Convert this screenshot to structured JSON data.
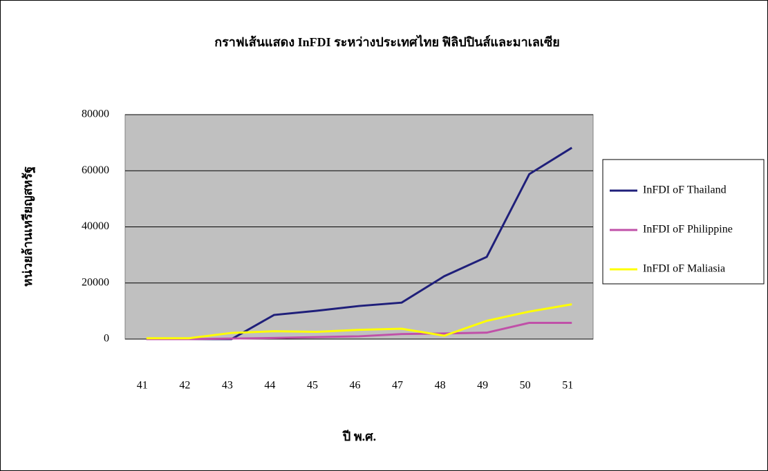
{
  "chart_data": {
    "type": "line",
    "title": "กราฟเส้นแสดง InFDI ระหว่างประเทศไทย ฟิลิปปินส์และมาเลเซีย",
    "x_label": "ปี พ.ศ.",
    "y_label": "หน่วยล้านเหรียญสหรัฐ",
    "categories": [
      "41",
      "42",
      "43",
      "44",
      "45",
      "46",
      "47",
      "48",
      "49",
      "50",
      "51"
    ],
    "series": [
      {
        "name": "InFDI oF Thailand",
        "color": "#1f1f7a",
        "values": [
          0,
          0,
          0,
          8600,
          10100,
          11800,
          13000,
          22400,
          29300,
          58800,
          68200
        ]
      },
      {
        "name": "InFDI oF Philippine",
        "color": "#c050a8",
        "values": [
          0,
          0,
          200,
          400,
          700,
          1000,
          1800,
          2000,
          2300,
          5800,
          5800
        ]
      },
      {
        "name": "InFDI oF Maliasia",
        "color": "#ffff00",
        "values": [
          300,
          300,
          2200,
          2800,
          2600,
          3300,
          3700,
          1200,
          6500,
          9800,
          12400
        ]
      }
    ],
    "ylim": [
      0,
      80000
    ],
    "yticks": [
      0,
      20000,
      40000,
      60000,
      80000
    ],
    "grid": true,
    "legend": "right"
  }
}
